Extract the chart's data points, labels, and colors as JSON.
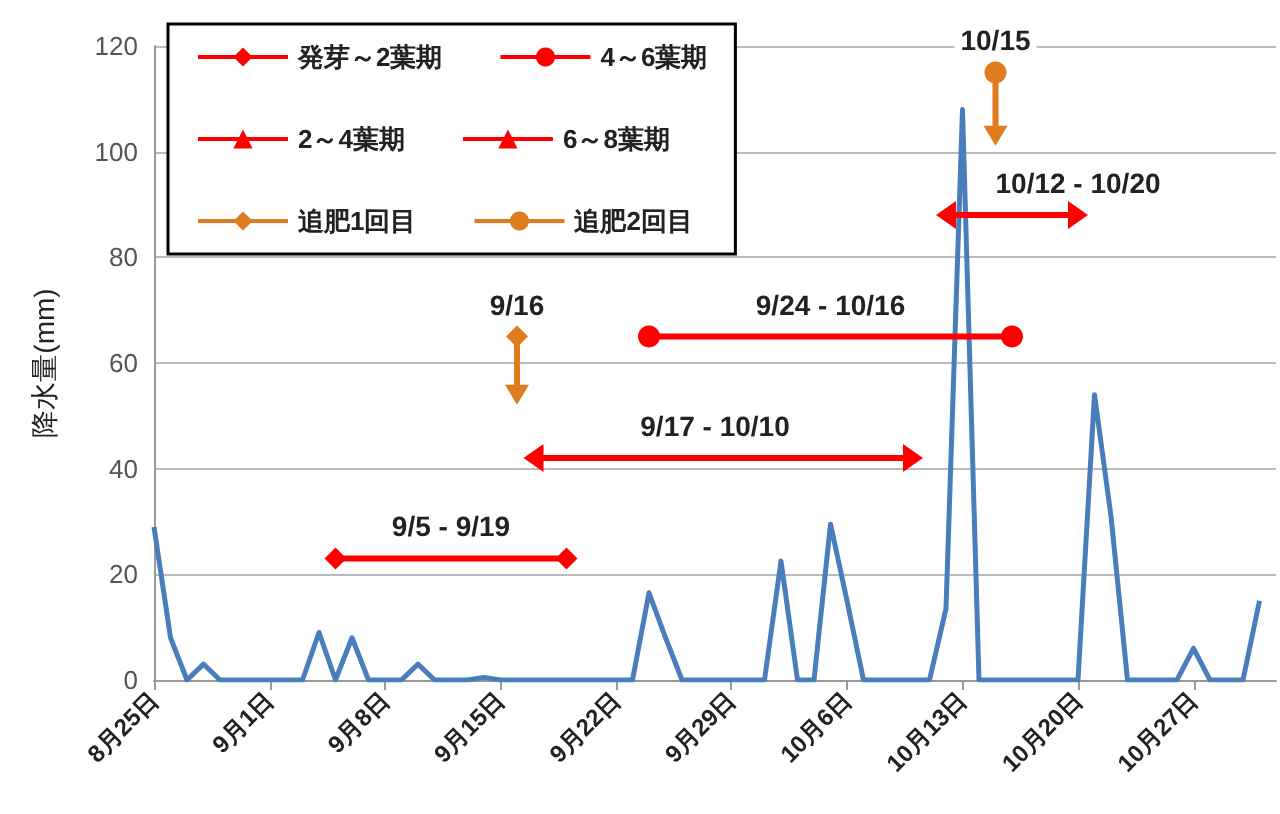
{
  "chart_data": {
    "type": "line",
    "ylabel": "降水量(mm)",
    "x": [
      "--08-25",
      "--08-26",
      "--08-27",
      "--08-28",
      "--08-29",
      "--08-30",
      "--08-31",
      "--09-01",
      "--09-02",
      "--09-03",
      "--09-04",
      "--09-05",
      "--09-06",
      "--09-07",
      "--09-08",
      "--09-09",
      "--09-10",
      "--09-11",
      "--09-12",
      "--09-13",
      "--09-14",
      "--09-15",
      "--09-16",
      "--09-17",
      "--09-18",
      "--09-19",
      "--09-20",
      "--09-21",
      "--09-22",
      "--09-23",
      "--09-24",
      "--09-25",
      "--09-26",
      "--09-27",
      "--09-28",
      "--09-29",
      "--09-30",
      "--10-01",
      "--10-02",
      "--10-03",
      "--10-04",
      "--10-05",
      "--10-06",
      "--10-07",
      "--10-08",
      "--10-09",
      "--10-10",
      "--10-11",
      "--10-12",
      "--10-13",
      "--10-14",
      "--10-15",
      "--10-16",
      "--10-17",
      "--10-18",
      "--10-19",
      "--10-20",
      "--10-21",
      "--10-22",
      "--10-23",
      "--10-24",
      "--10-25",
      "--10-26",
      "--10-27",
      "--10-28",
      "--10-29",
      "--10-30",
      "--10-31"
    ],
    "series": [
      {
        "color": "#4a7ebb",
        "values": [
          29,
          8,
          0,
          3,
          0,
          0,
          0,
          0,
          0,
          0,
          9,
          0,
          8,
          0,
          0,
          0,
          3,
          0,
          0,
          0,
          0.5,
          0,
          0,
          0,
          0,
          0,
          0,
          0,
          0,
          0,
          16.5,
          8,
          0,
          0,
          0,
          0,
          0,
          0,
          22.5,
          0,
          0,
          29.5,
          15,
          0,
          0,
          0,
          0,
          0,
          13.5,
          108,
          0,
          0,
          0,
          0,
          0,
          0,
          0,
          54,
          31,
          0,
          0,
          0,
          0,
          6,
          0,
          0,
          0,
          15
        ]
      },
      {
        "name": "発芽～2葉期",
        "color": "#ff0000",
        "marker": "diamond",
        "x": [
          "--09-05",
          "--09-19"
        ],
        "values": [
          23,
          23
        ]
      },
      {
        "name": "4～6葉期",
        "color": "#ff0000",
        "marker": "circle",
        "x": [
          "--09-24",
          "--10-16"
        ],
        "values": [
          65,
          65
        ]
      },
      {
        "name": "2～4葉期",
        "color": "#ff0000",
        "marker": "triangle",
        "x": [
          "--09-17",
          "--10-10"
        ],
        "values": [
          42,
          42
        ]
      },
      {
        "name": "6～8葉期",
        "color": "#ff0000",
        "marker": "triangle",
        "x": [
          "--10-12",
          "--10-20"
        ],
        "values": [
          88,
          88
        ]
      },
      {
        "name": "追肥1回目",
        "color": "#e07b1f",
        "marker": "diamond",
        "x": [
          "--09-16",
          "--09-16"
        ],
        "values": [
          65,
          54
        ]
      },
      {
        "name": "追肥2回目",
        "color": "#e07b1f",
        "marker": "circle",
        "x": [
          "--10-15",
          "--10-15"
        ],
        "values": [
          115,
          103
        ]
      }
    ],
    "xlim": [
      "--08-25",
      "--11-01"
    ],
    "xticks": [
      {
        "value": "--08-25",
        "label": "8月25日"
      },
      {
        "value": "--09-01",
        "label": "9月1日"
      },
      {
        "value": "--09-08",
        "label": "9月8日"
      },
      {
        "value": "--09-15",
        "label": "9月15日"
      },
      {
        "value": "--09-22",
        "label": "9月22日"
      },
      {
        "value": "--09-29",
        "label": "9月29日"
      },
      {
        "value": "--10-06",
        "label": "10月6日"
      },
      {
        "value": "--10-13",
        "label": "10月13日"
      },
      {
        "value": "--10-20",
        "label": "10月20日"
      },
      {
        "value": "--10-27",
        "label": "10月27日"
      }
    ],
    "ylim": [
      0,
      120
    ],
    "yticks": [
      0,
      20,
      40,
      60,
      80,
      100,
      120
    ],
    "grid": "y",
    "legend": "top left",
    "annotations": [
      {
        "text": "9/5 - 9/19",
        "x": "--09-12",
        "y": 23
      },
      {
        "text": "9/17 - 10/10",
        "x": "--09-28",
        "y": 42
      },
      {
        "text": "9/24 - 10/16",
        "x": "--10-05",
        "y": 65
      },
      {
        "text": "10/12 - 10/20",
        "x": "--10-20",
        "y": 88
      },
      {
        "text": "9/16",
        "x": "--09-16",
        "y": 65
      },
      {
        "text": "10/15",
        "x": "--10-15",
        "y": 115
      }
    ]
  }
}
